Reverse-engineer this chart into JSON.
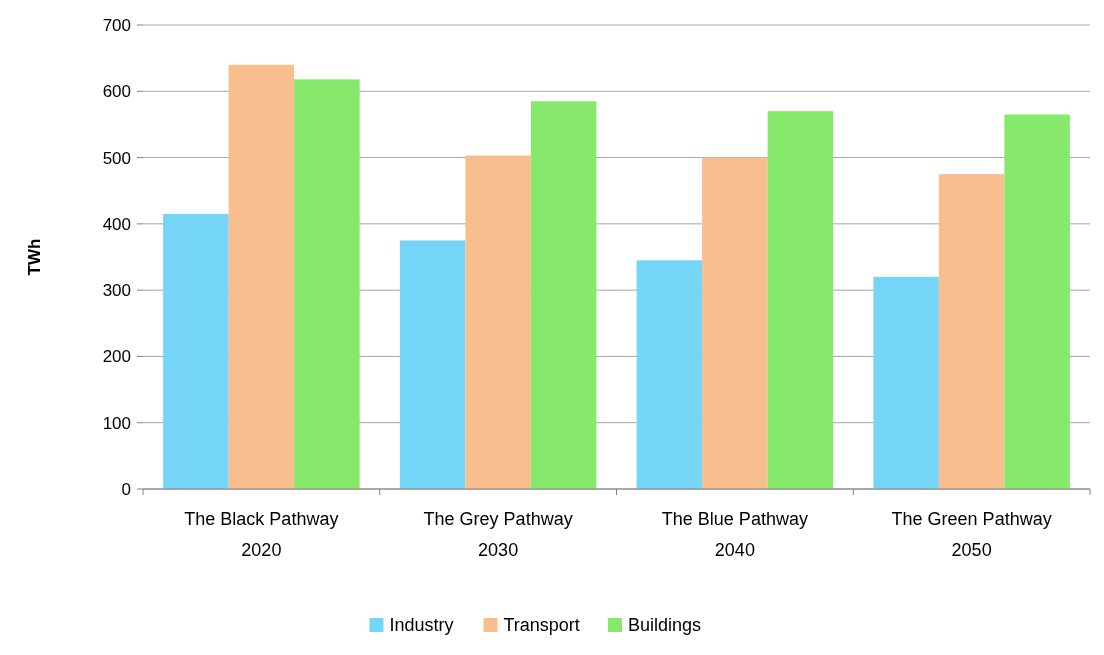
{
  "chart_data": {
    "type": "bar",
    "ylabel": "TWh",
    "categories": [
      "The Black Pathway\n2020",
      "The Grey Pathway\n2030",
      "The Blue Pathway\n2040",
      "The Green Pathway\n2050"
    ],
    "series": [
      {
        "name": "Industry",
        "color": "#75d5f7",
        "values": [
          415,
          375,
          345,
          320
        ]
      },
      {
        "name": "Transport",
        "color": "#f9be8e",
        "values": [
          640,
          503,
          500,
          475
        ]
      },
      {
        "name": "Buildings",
        "color": "#87e96b",
        "values": [
          618,
          585,
          570,
          565
        ]
      }
    ],
    "ylim": [
      0,
      700
    ],
    "yticks": [
      0,
      100,
      200,
      300,
      400,
      500,
      600,
      700
    ],
    "grid": "y",
    "legend": "bottom"
  }
}
